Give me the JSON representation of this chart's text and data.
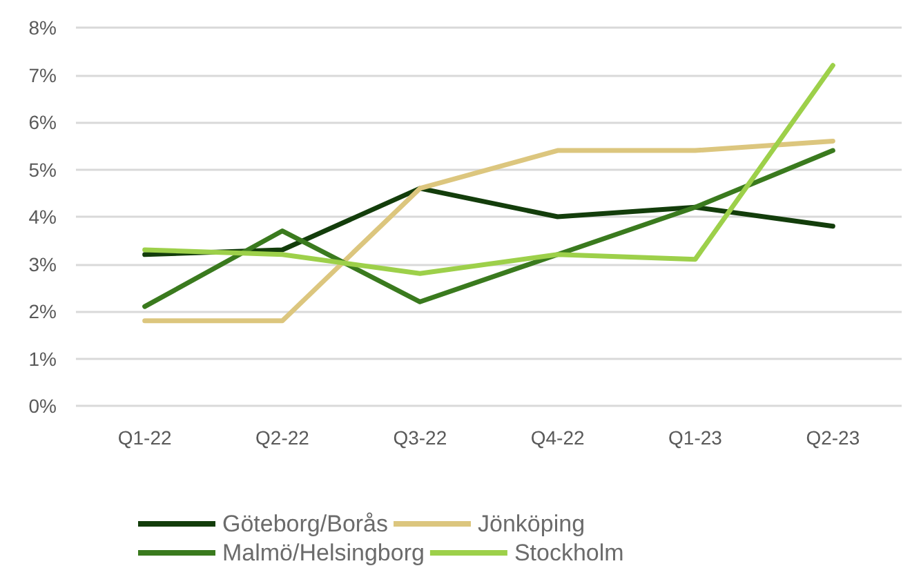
{
  "chart_data": {
    "type": "line",
    "categories": [
      "Q1-22",
      "Q2-22",
      "Q3-22",
      "Q4-22",
      "Q1-23",
      "Q2-23"
    ],
    "series": [
      {
        "name": "Göteborg/Borås",
        "color": "#133d0b",
        "values": [
          3.2,
          3.3,
          4.6,
          4.0,
          4.2,
          3.8
        ]
      },
      {
        "name": "Jönköping",
        "color": "#dcc67e",
        "values": [
          1.8,
          1.8,
          4.6,
          5.4,
          5.4,
          5.6
        ]
      },
      {
        "name": "Malmö/Helsingborg",
        "color": "#3a7a1e",
        "values": [
          2.1,
          3.7,
          2.2,
          3.2,
          4.2,
          5.4
        ]
      },
      {
        "name": "Stockholm",
        "color": "#9dd04a",
        "values": [
          3.3,
          3.2,
          2.8,
          3.2,
          3.1,
          7.2
        ]
      }
    ],
    "ylim": [
      0,
      8
    ],
    "yticks": [
      {
        "value": 0,
        "label": "0%"
      },
      {
        "value": 1,
        "label": "1%"
      },
      {
        "value": 2,
        "label": "2%"
      },
      {
        "value": 3,
        "label": "3%"
      },
      {
        "value": 4,
        "label": "4%"
      },
      {
        "value": 5,
        "label": "5%"
      },
      {
        "value": 6,
        "label": "6%"
      },
      {
        "value": 7,
        "label": "7%"
      },
      {
        "value": 8,
        "label": "8%"
      }
    ],
    "grid": "y",
    "legend": "bottom",
    "marker": "none",
    "line_style": "solid"
  }
}
